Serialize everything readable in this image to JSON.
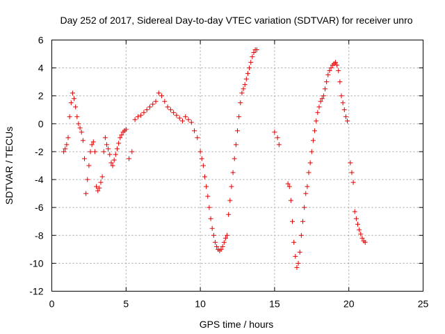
{
  "chart_data": {
    "type": "scatter",
    "title": "Day 252 of 2017, Sidereal Day-to-day VTEC variation (SDTVAR) for receiver unro",
    "xlabel": "GPS time / hours",
    "ylabel": "SDTVAR / TECUs",
    "xlim": [
      0,
      25
    ],
    "ylim": [
      -12,
      6
    ],
    "x_ticks": [
      0,
      5,
      10,
      15,
      20,
      25
    ],
    "y_ticks": [
      -12,
      -10,
      -8,
      -6,
      -4,
      -2,
      0,
      2,
      4,
      6
    ],
    "grid": true,
    "marker": "plus",
    "color": "#e00000",
    "series": [
      {
        "x": [
          0.8,
          0.9,
          1.0,
          1.1,
          1.2,
          1.3,
          1.4,
          1.5,
          1.6,
          1.7,
          1.8,
          1.9,
          2.0,
          2.1,
          2.2,
          2.3,
          2.4,
          2.5,
          2.6,
          2.7,
          2.8,
          2.9,
          3.0,
          3.1,
          3.2,
          3.3,
          3.4,
          3.5,
          3.6,
          3.7,
          3.8,
          3.9,
          4.0,
          4.1,
          4.2,
          4.3,
          4.4,
          4.5,
          4.6,
          4.7,
          4.8,
          4.9,
          5.0,
          5.2,
          5.4,
          5.6,
          5.8,
          6.0,
          6.2,
          6.4,
          6.6,
          6.8,
          7.0,
          7.2,
          7.4,
          7.6,
          7.8,
          8.0,
          8.2,
          8.4,
          8.6,
          8.8,
          9.0,
          9.2,
          9.4,
          9.6,
          9.8,
          10.0,
          10.1,
          10.2,
          10.3,
          10.4,
          10.5,
          10.6,
          10.7,
          10.8,
          10.9,
          11.0,
          11.1,
          11.2,
          11.3,
          11.4,
          11.5,
          11.6,
          11.7,
          11.8,
          11.9,
          12.0,
          12.1,
          12.2,
          12.3,
          12.4,
          12.5,
          12.6,
          12.7,
          12.8,
          12.9,
          13.0,
          13.1,
          13.2,
          13.3,
          13.4,
          13.5,
          13.6,
          13.7,
          13.8
        ],
        "y": [
          -2.0,
          -1.8,
          -1.5,
          -1.0,
          0.5,
          1.5,
          2.2,
          1.8,
          1.2,
          0.5,
          0.0,
          -0.3,
          -0.6,
          -1.2,
          -2.5,
          -5.0,
          -4.0,
          -3.0,
          -2.0,
          -1.5,
          -1.3,
          -2.0,
          -4.5,
          -4.8,
          -4.6,
          -4.2,
          -3.8,
          -2.0,
          -1.0,
          -1.5,
          -1.8,
          -2.2,
          -2.8,
          -3.0,
          -2.6,
          -2.2,
          -1.8,
          -1.4,
          -1.0,
          -0.8,
          -0.6,
          -0.5,
          -0.4,
          -2.5,
          -2.0,
          0.3,
          0.5,
          0.6,
          0.8,
          1.0,
          1.2,
          1.4,
          1.6,
          2.2,
          2.0,
          1.6,
          1.2,
          1.0,
          0.8,
          0.6,
          0.4,
          0.2,
          0.5,
          0.3,
          0.1,
          -0.5,
          -1.0,
          -2.0,
          -2.5,
          -3.0,
          -3.8,
          -4.5,
          -5.2,
          -6.0,
          -6.8,
          -7.5,
          -8.0,
          -8.5,
          -8.8,
          -9.0,
          -9.1,
          -9.0,
          -8.8,
          -8.5,
          -8.2,
          -8.0,
          -6.5,
          -5.5,
          -4.5,
          -3.5,
          -2.5,
          -1.5,
          -0.5,
          0.5,
          1.5,
          2.2,
          2.5,
          2.8,
          3.2,
          3.6,
          4.0,
          4.4,
          4.8,
          5.1,
          5.3,
          5.3
        ]
      },
      {
        "x": [
          15.0,
          15.2,
          15.3,
          15.9,
          16.0,
          16.1,
          16.2,
          16.3,
          16.4,
          16.5,
          16.6,
          16.7,
          16.8,
          16.9,
          17.0,
          17.1,
          17.2,
          17.3,
          17.4,
          17.5,
          17.6,
          17.7,
          17.8,
          17.9,
          18.0,
          18.1,
          18.2,
          18.3,
          18.4,
          18.5,
          18.6,
          18.7,
          18.8,
          18.9,
          19.0,
          19.1,
          19.2,
          19.3,
          19.4,
          19.5,
          19.6,
          19.7,
          19.8,
          19.9,
          20.1,
          20.2,
          20.3,
          20.4,
          20.5,
          20.6,
          20.7,
          20.8,
          20.9,
          21.0,
          21.1
        ],
        "y": [
          -0.6,
          -1.0,
          -1.5,
          -4.3,
          -4.5,
          -5.5,
          -7.0,
          -8.5,
          -9.5,
          -10.3,
          -10.0,
          -9.2,
          -8.0,
          -7.0,
          -6.0,
          -5.0,
          -4.5,
          -3.5,
          -2.8,
          -2.0,
          -1.2,
          -0.5,
          0.2,
          0.8,
          1.2,
          1.6,
          1.8,
          2.0,
          2.5,
          3.0,
          3.5,
          3.8,
          4.0,
          4.2,
          4.3,
          4.4,
          4.2,
          3.8,
          3.0,
          2.0,
          1.5,
          1.0,
          0.5,
          0.2,
          -2.8,
          -3.5,
          -4.2,
          -6.3,
          -6.8,
          -7.2,
          -7.6,
          -7.9,
          -8.2,
          -8.4,
          -8.5
        ]
      }
    ]
  }
}
